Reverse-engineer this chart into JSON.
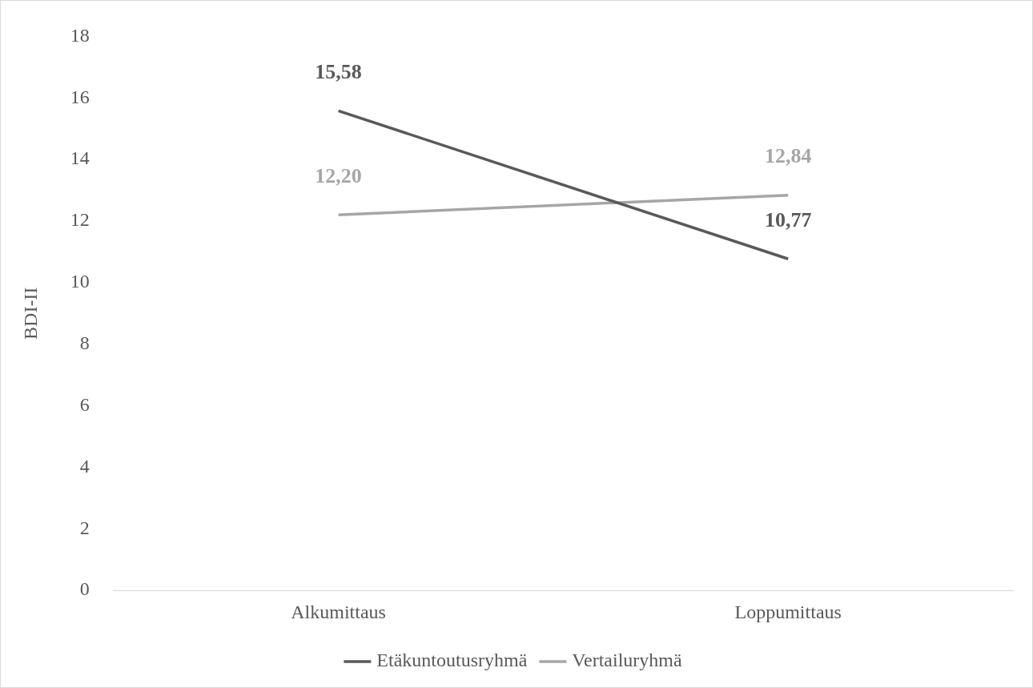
{
  "chart_data": {
    "type": "line",
    "ylabel": "BDI-II",
    "categories": [
      "Alkumittaus",
      "Loppumittaus"
    ],
    "series": [
      {
        "name": "Etäkuntoutusryhmä",
        "color": "#595959",
        "values": [
          15.58,
          10.77
        ],
        "value_labels": [
          "15,58",
          "10,77"
        ]
      },
      {
        "name": "Vertailuryhmä",
        "color": "#a6a6a6",
        "values": [
          12.2,
          12.84
        ],
        "value_labels": [
          "12,20",
          "12,84"
        ]
      }
    ],
    "ylim": [
      0,
      18
    ],
    "yticks": [
      0,
      2,
      4,
      6,
      8,
      10,
      12,
      14,
      16,
      18
    ],
    "grid": false,
    "legend": "bottom",
    "marker": "none",
    "line_style": "solid"
  }
}
